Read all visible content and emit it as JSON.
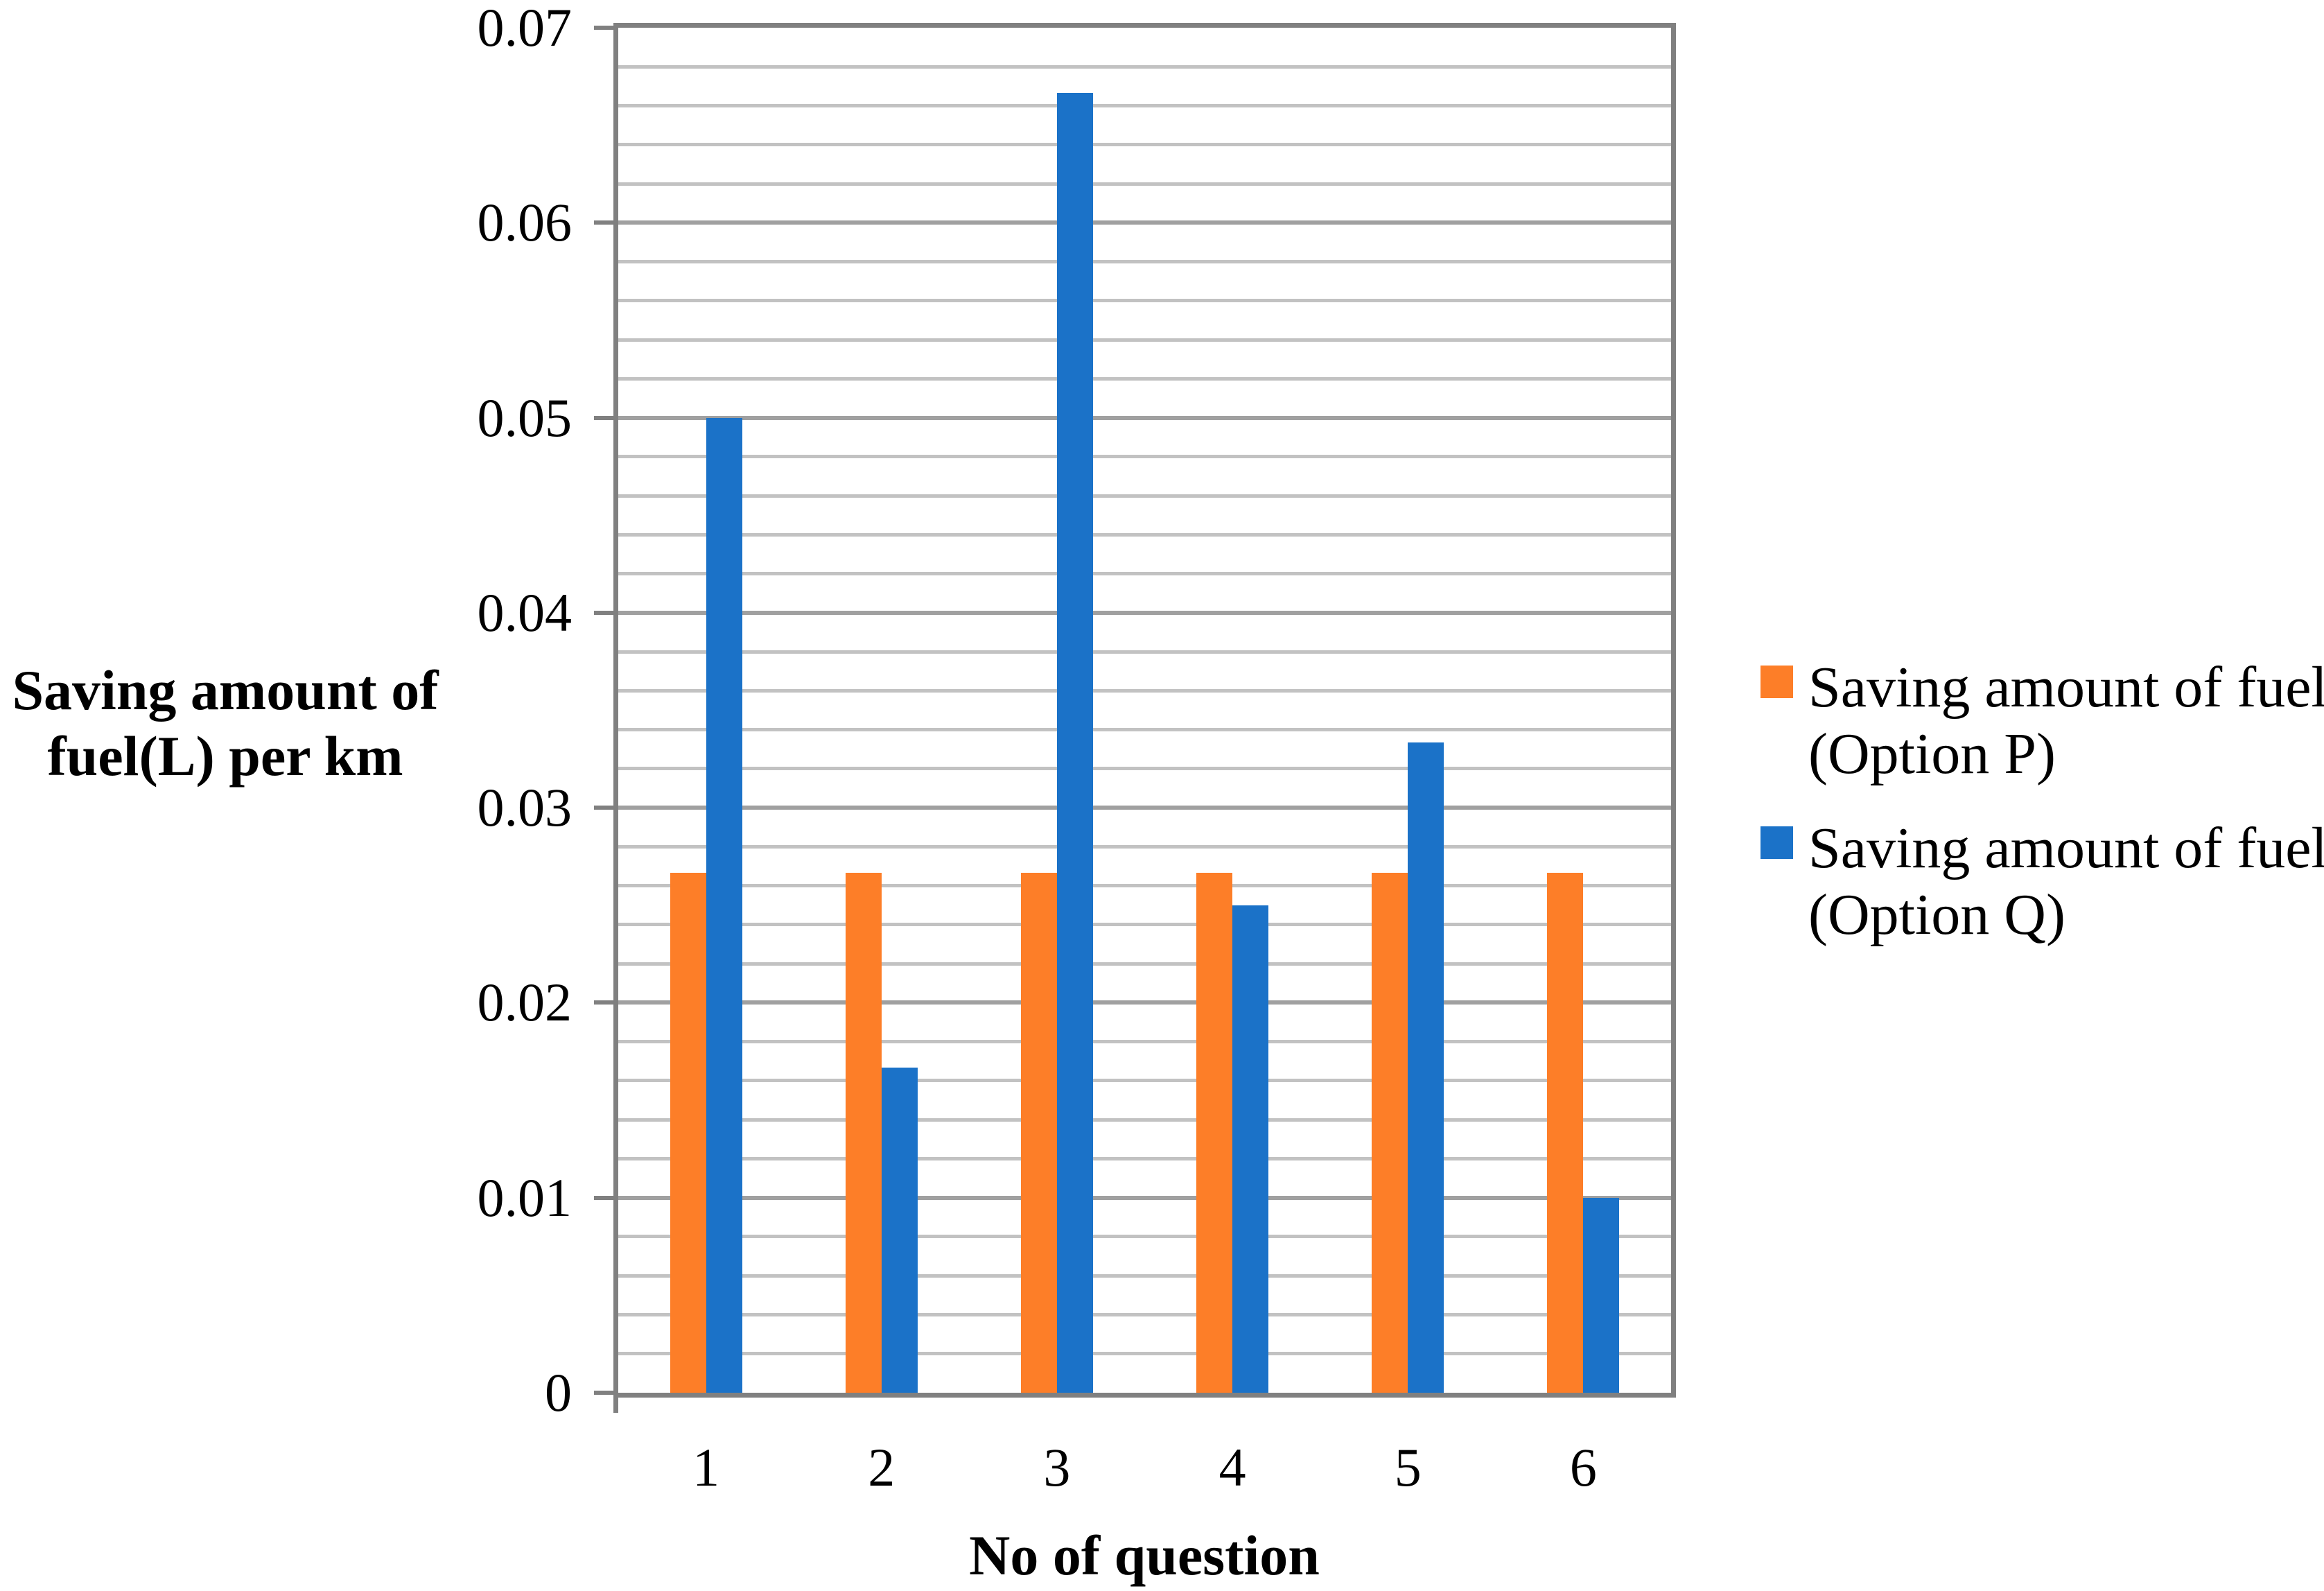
{
  "chart_data": {
    "type": "bar",
    "title": "",
    "categories": [
      "1",
      "2",
      "3",
      "4",
      "5",
      "6"
    ],
    "series": [
      {
        "name": "Saving amount of fuel (Option P)",
        "legend_lines": [
          "Saving amount of fuel",
          "(Option P)"
        ],
        "color": "#FD7E28",
        "values": [
          0.02667,
          0.02667,
          0.02667,
          0.02667,
          0.02667,
          0.02667
        ]
      },
      {
        "name": "Saving amount of fuel (Option Q)",
        "legend_lines": [
          "Saving amount of fuel",
          "(Option Q)"
        ],
        "color": "#1B72C8",
        "values": [
          0.05,
          0.01667,
          0.06667,
          0.025,
          0.03333,
          0.01
        ]
      }
    ],
    "xlabel": "No of question",
    "ylabel_lines": [
      "Saving amount of",
      "fuel(L) per km"
    ],
    "ylim": [
      0,
      0.07
    ],
    "y_major_step": 0.01,
    "y_minor_step": 0.002,
    "y_ticks": [
      {
        "value": 0,
        "label": "0"
      },
      {
        "value": 0.01,
        "label": "0.01"
      },
      {
        "value": 0.02,
        "label": "0.02"
      },
      {
        "value": 0.03,
        "label": "0.03"
      },
      {
        "value": 0.04,
        "label": "0.04"
      },
      {
        "value": 0.05,
        "label": "0.05"
      },
      {
        "value": 0.06,
        "label": "0.06"
      },
      {
        "value": 0.07,
        "label": "0.07"
      }
    ],
    "grid": "on",
    "legend_position": "right",
    "colors": {
      "major_grid": "#A0A0A0",
      "minor_grid": "#C2C2C2",
      "axis": "#808080"
    }
  }
}
